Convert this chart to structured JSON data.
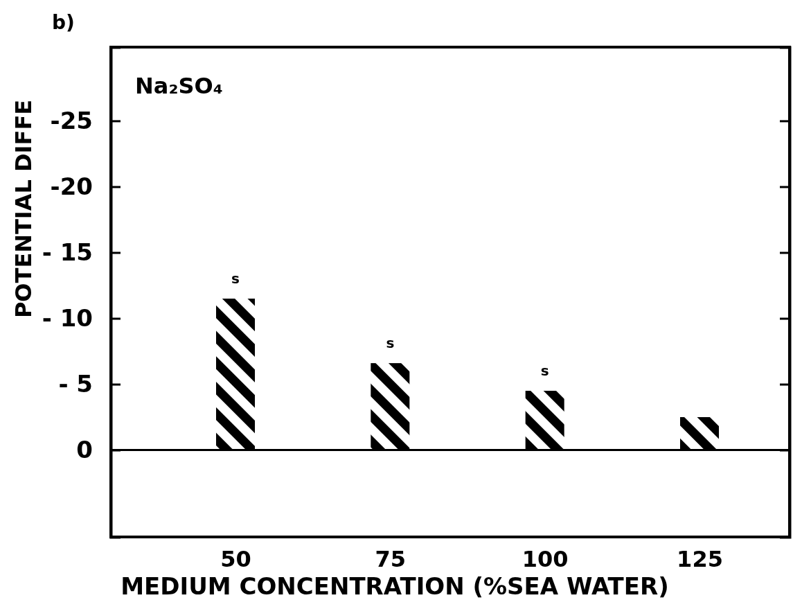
{
  "chart_data": {
    "type": "bar",
    "ylabel": "POTENTIAL DIFFE",
    "xlabel": "MEDIUM CONCENTRATION (%SEA WATER)",
    "categories": [
      "50",
      "75",
      "100",
      "125"
    ],
    "values": [
      -11.5,
      -6.6,
      -4.5,
      -2.5
    ],
    "value_labels": [
      "s",
      "s",
      "s",
      null
    ],
    "color": "#000000",
    "ylim": [
      6.6,
      -30.6
    ],
    "yticks": [
      0,
      {
        "value": -5,
        "label": "- 5"
      },
      {
        "value": -10,
        "label": "- 10"
      },
      {
        "value": -15,
        "label": "- 15"
      },
      -20,
      -25
    ],
    "annotations": [
      "b)",
      "Na₂SO₄"
    ]
  }
}
